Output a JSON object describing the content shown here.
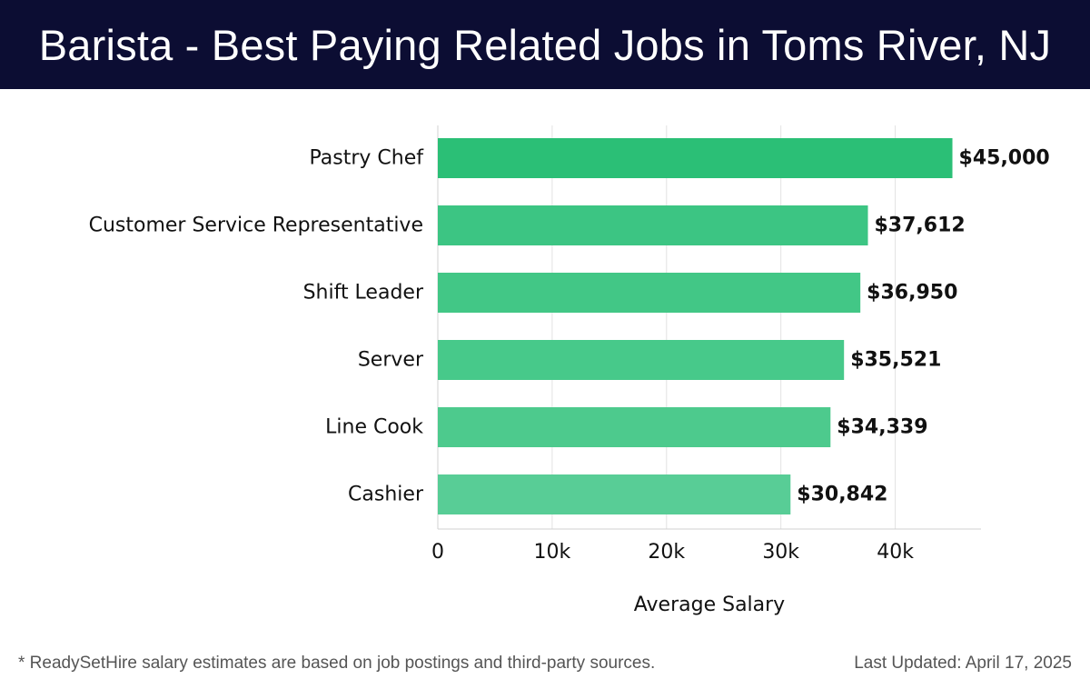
{
  "header": {
    "title": "Barista - Best Paying Related Jobs in Toms River, NJ"
  },
  "chart_data": {
    "type": "bar",
    "orientation": "horizontal",
    "categories": [
      "Pastry Chef",
      "Customer Service Representative",
      "Shift Leader",
      "Server",
      "Line Cook",
      "Cashier"
    ],
    "values": [
      45000,
      37612,
      36950,
      35521,
      34339,
      30842
    ],
    "value_labels": [
      "$45,000",
      "$37,612",
      "$36,950",
      "$35,521",
      "$34,339",
      "$30,842"
    ],
    "xlabel": "Average Salary",
    "ylabel": "",
    "xlim": [
      0,
      47500
    ],
    "x_ticks": [
      0,
      10000,
      20000,
      30000,
      40000
    ],
    "x_tick_labels": [
      "0",
      "10k",
      "20k",
      "30k",
      "40k"
    ],
    "grid": "vertical",
    "bar_colors": [
      "#2bbf76",
      "#3cc583",
      "#42c786",
      "#47c98a",
      "#4dca8d",
      "#58cd96"
    ]
  },
  "footer": {
    "note": "* ReadySetHire salary estimates are based on job postings and third-party sources.",
    "updated": "Last Updated: April 17, 2025"
  }
}
